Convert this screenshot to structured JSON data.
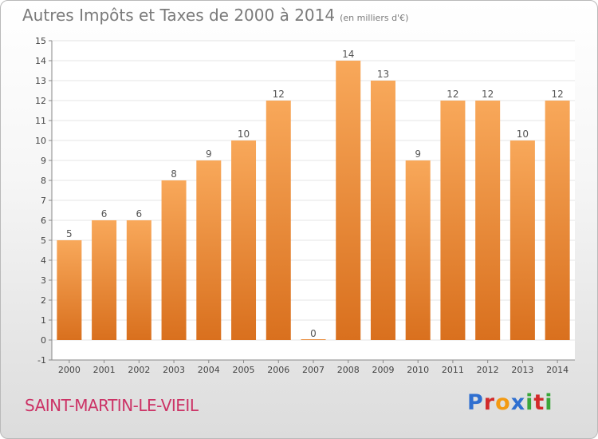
{
  "title": "Autres Impôts et Taxes de 2000 à 2014",
  "subtitle": "(en milliers d'€)",
  "town": "SAINT-MARTIN-LE-VIEIL",
  "logo": "Proxiti",
  "colors": {
    "bar_light": "#f8a85a",
    "bar_dark": "#d9701e",
    "grid": "#e4e4e4",
    "axis_text": "#444444",
    "title": "#7a7a7a",
    "town": "#cc3366",
    "logo": [
      "#2f6fd0",
      "#d22a2a",
      "#f39a12",
      "#2f6fd0",
      "#3aa63a",
      "#d22a2a",
      "#3aa63a"
    ]
  },
  "chart_data": {
    "type": "bar",
    "categories": [
      "2000",
      "2001",
      "2002",
      "2003",
      "2004",
      "2005",
      "2006",
      "2007",
      "2008",
      "2009",
      "2010",
      "2011",
      "2012",
      "2013",
      "2014"
    ],
    "values": [
      5,
      6,
      6,
      8,
      9,
      10,
      12,
      0,
      14,
      13,
      9,
      12,
      12,
      10,
      12
    ],
    "data_labels": [
      "5",
      "6",
      "6",
      "8",
      "9",
      "10",
      "12",
      "0",
      "14",
      "13",
      "9",
      "12",
      "12",
      "10",
      "12"
    ],
    "yticks": [
      -1,
      0,
      1,
      2,
      3,
      4,
      5,
      6,
      7,
      8,
      9,
      10,
      11,
      12,
      13,
      14,
      15
    ],
    "ylim": [
      -1,
      15
    ],
    "grid": true,
    "legend": "none"
  }
}
